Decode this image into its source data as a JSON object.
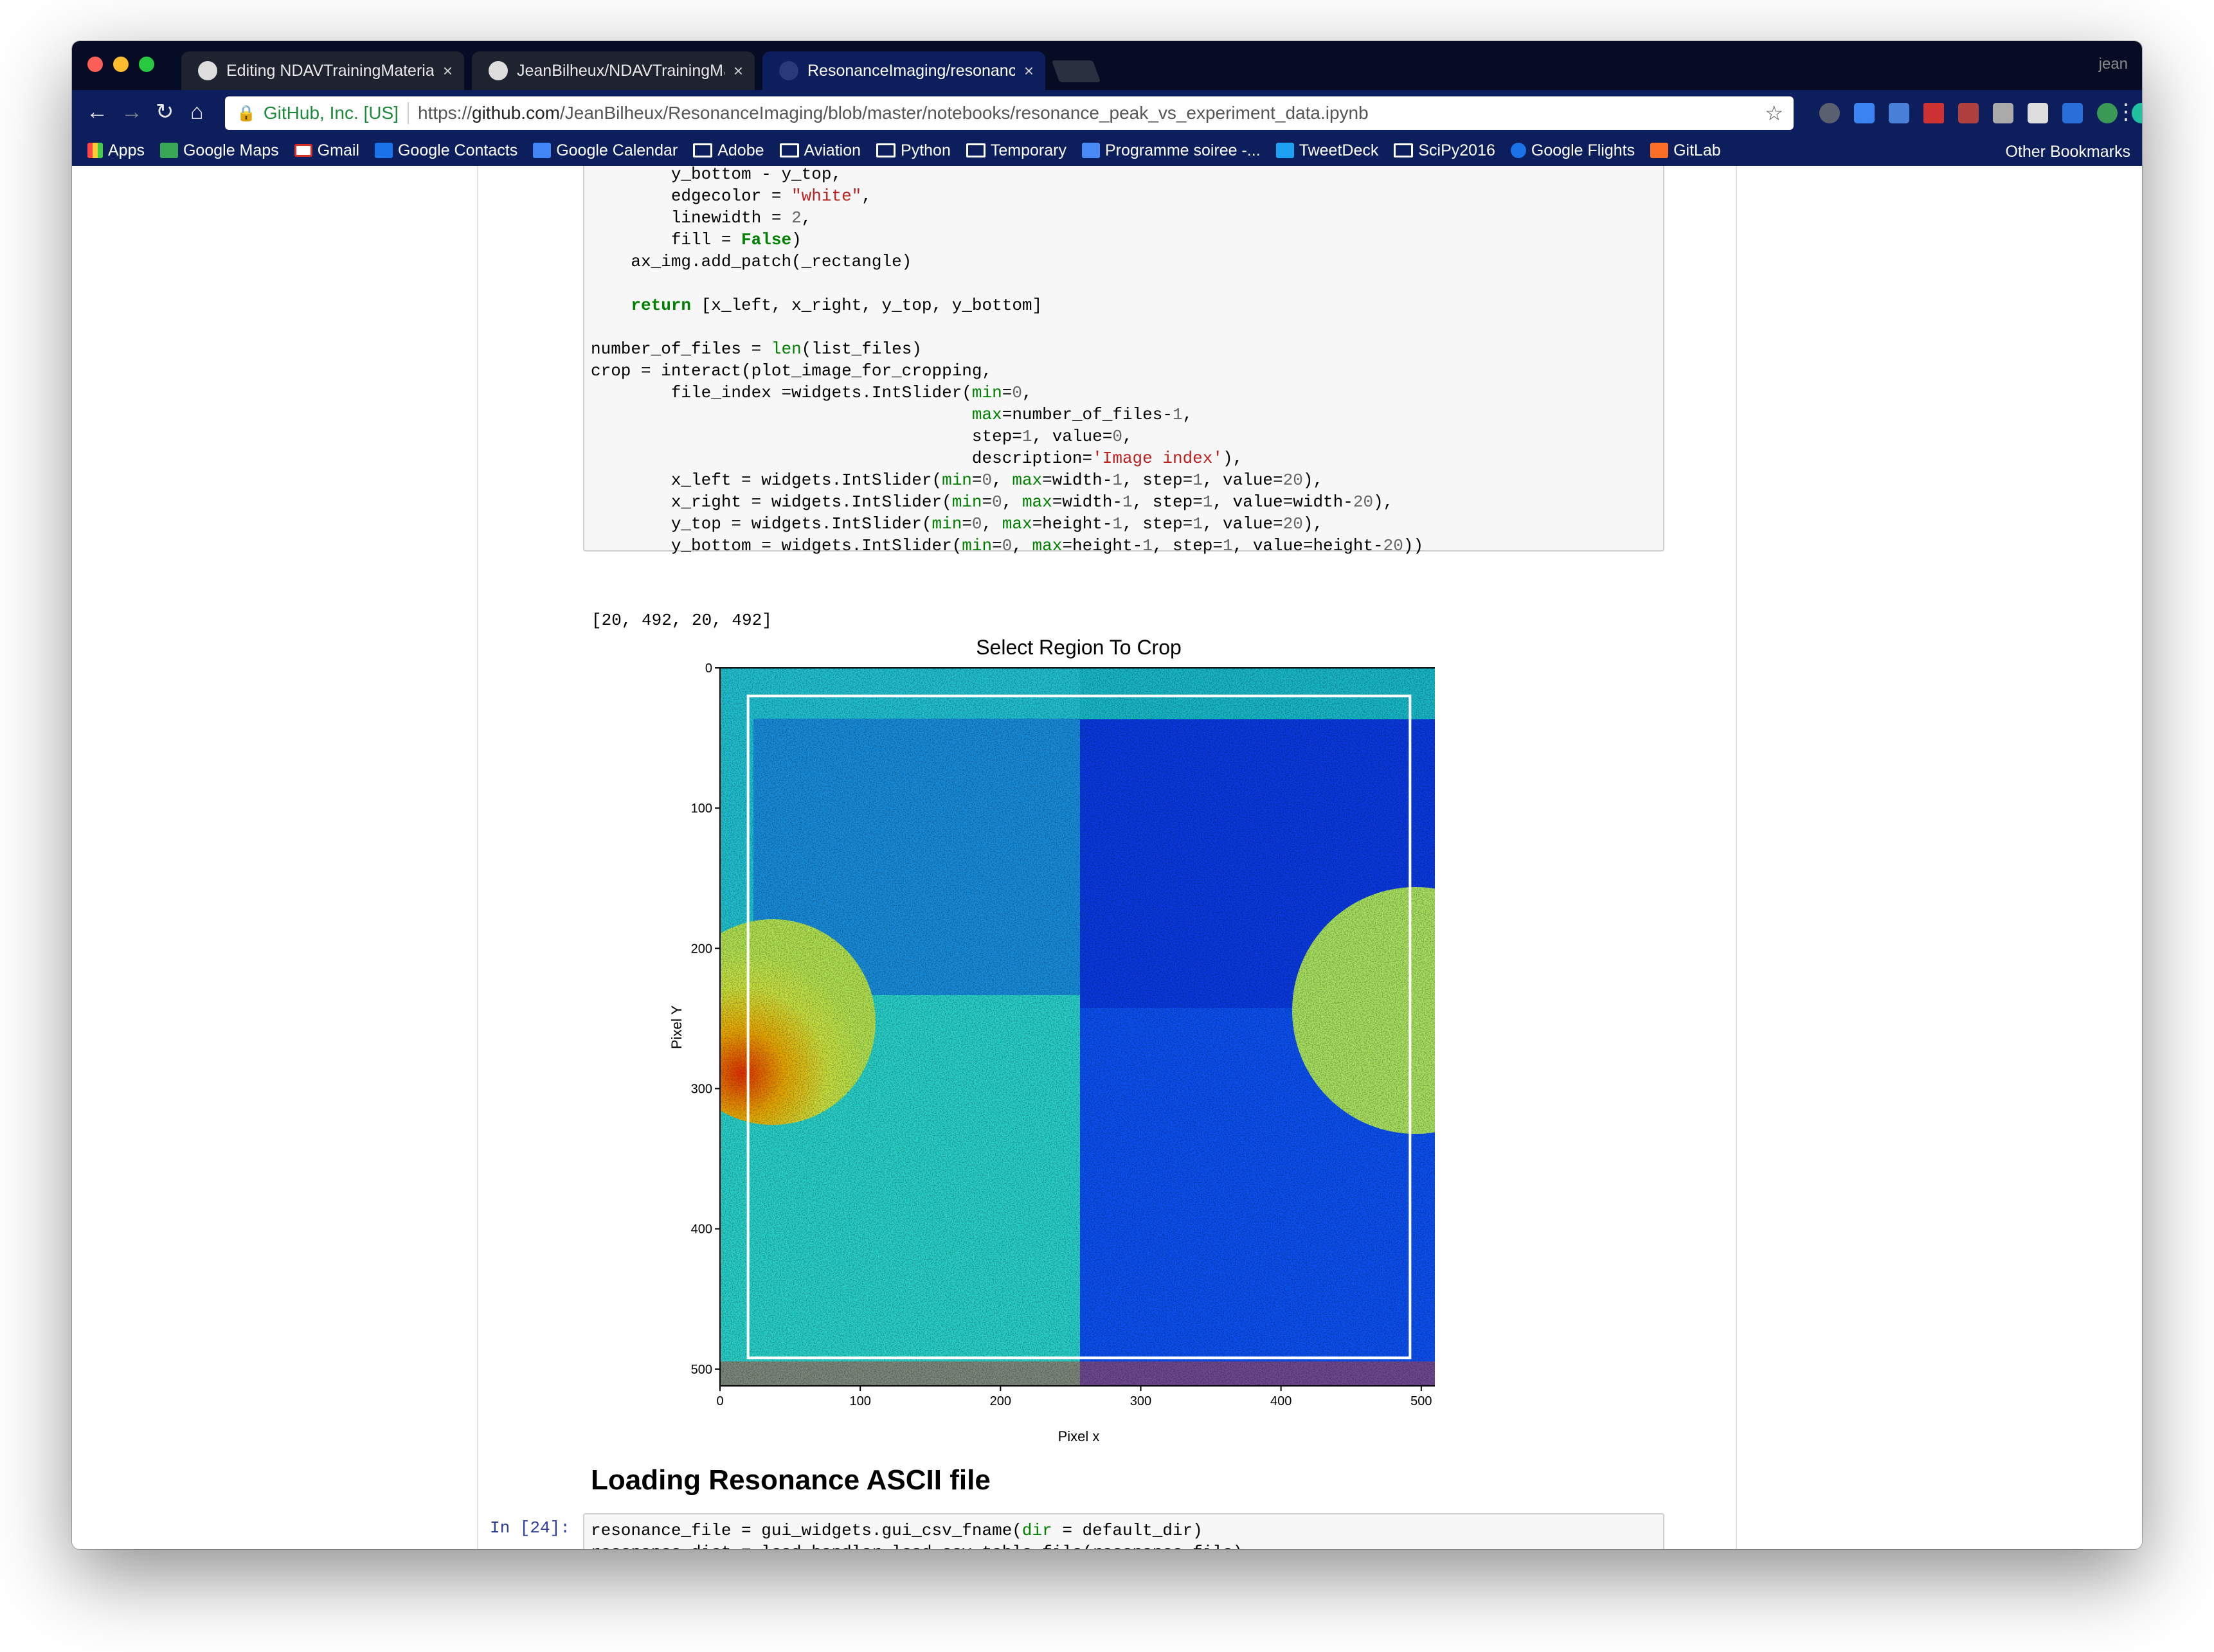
{
  "tabs": [
    {
      "title": "Editing NDAVTrainingMaterial/"
    },
    {
      "title": "JeanBilheux/NDAVTrainingMat"
    },
    {
      "title": "ResonanceImaging/resonance"
    }
  ],
  "tab_close": "×",
  "user": "jean",
  "nav": {
    "back": "←",
    "forward": "→",
    "reload": "↻",
    "home": "⌂",
    "menu": "⋮"
  },
  "omnibox": {
    "secure_label": "GitHub, Inc. [US]",
    "url_prefix": "https://",
    "url_domain": "github.com",
    "url_path": "/JeanBilheux/ResonanceImaging/blob/master/notebooks/resonance_peak_vs_experiment_data.ipynb",
    "star": "☆"
  },
  "bookmarks": [
    "Apps",
    "Google Maps",
    "Gmail",
    "Google Contacts",
    "Google Calendar",
    "Adobe",
    "Aviation",
    "Python",
    "Temporary",
    "Programme soiree -...",
    "TweetDeck",
    "SciPy2016",
    "Google Flights",
    "GitLab"
  ],
  "other_bookmarks": "Other Bookmarks",
  "colors": {
    "chrome_dark": "#060c24",
    "chrome_blue": "#0d1e5c",
    "link_blue": "#303f9f"
  },
  "output_text": "[20, 492, 20, 492]",
  "section_heading": "Loading Resonance ASCII file",
  "prompt2": "In [24]:",
  "chart_data": {
    "type": "heatmap",
    "title": "Select Region To Crop",
    "xlabel": "Pixel x",
    "ylabel": "Pixel Y",
    "xlim": [
      0,
      512
    ],
    "ylim": [
      512,
      0
    ],
    "xticks": [
      "0",
      "100",
      "200",
      "300",
      "400",
      "500"
    ],
    "yticks": [
      "0",
      "100",
      "200",
      "300",
      "400",
      "500"
    ],
    "colormap": "jet",
    "crop_rectangle": {
      "x_left": 20,
      "x_right": 492,
      "y_top": 20,
      "y_bottom": 492,
      "edgecolor": "white"
    }
  }
}
